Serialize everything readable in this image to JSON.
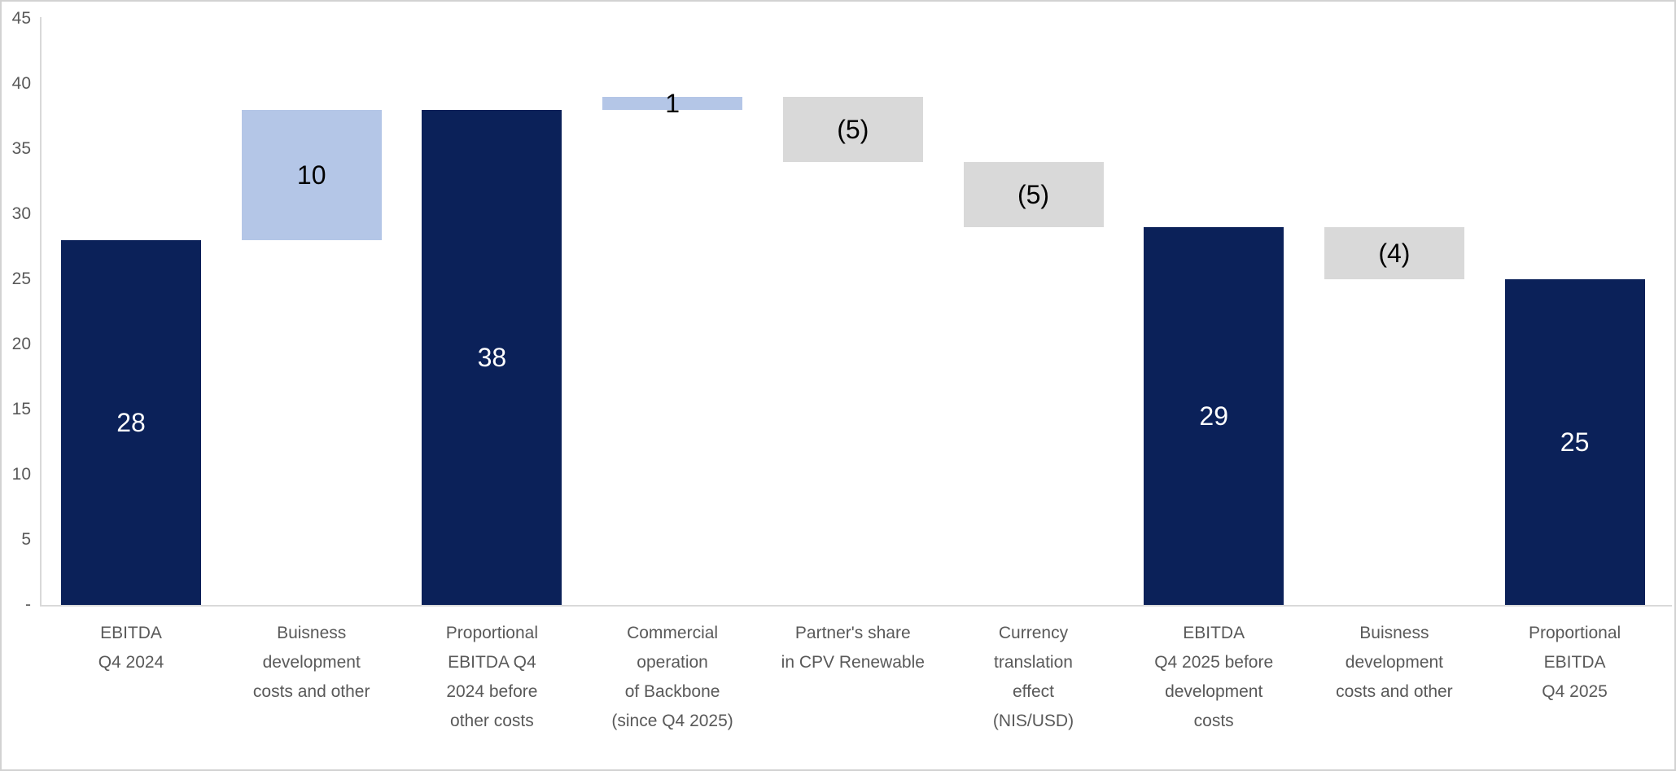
{
  "chart_data": {
    "type": "bar",
    "subtype": "waterfall",
    "title": "",
    "xlabel": "",
    "ylabel": "",
    "ylim": [
      0,
      45
    ],
    "ytick_step": 5,
    "grid": false,
    "legend": false,
    "yticks": [
      {
        "label": "45",
        "value": 45
      },
      {
        "label": "40",
        "value": 40
      },
      {
        "label": "35",
        "value": 35
      },
      {
        "label": "30",
        "value": 30
      },
      {
        "label": "25",
        "value": 25
      },
      {
        "label": "20",
        "value": 20
      },
      {
        "label": "15",
        "value": 15
      },
      {
        "label": "10",
        "value": 10
      },
      {
        "label": "5",
        "value": 5
      },
      {
        "label": "-",
        "value": 0
      }
    ],
    "categories": [
      "EBITDA Q4 2024",
      "Buisness development costs and other",
      "Proportional EBITDA Q4 2024 before other costs",
      "Commercial operation of Backbone (since Q4 2025)",
      "Partner's share in CPV Renewable",
      "Currency translation effect (NIS/USD)",
      "EBITDA Q4 2025 before development costs",
      "Buisness development costs and other",
      "Proportional EBITDA Q4 2025"
    ],
    "bars": [
      {
        "category_lines": [
          "EBITDA",
          "Q4 2024"
        ],
        "value": 28,
        "display": "28",
        "start": 0,
        "end": 28,
        "role": "total",
        "color_key": "navy",
        "label_color_key": "label_on_dark"
      },
      {
        "category_lines": [
          "Buisness",
          "development",
          "costs and other"
        ],
        "value": 10,
        "display": "10",
        "start": 28,
        "end": 38,
        "role": "increase",
        "color_key": "light_blue",
        "label_color_key": "label_on_light"
      },
      {
        "category_lines": [
          "Proportional",
          "EBITDA Q4",
          "2024 before",
          "other costs"
        ],
        "value": 38,
        "display": "38",
        "start": 0,
        "end": 38,
        "role": "total",
        "color_key": "navy",
        "label_color_key": "label_on_dark"
      },
      {
        "category_lines": [
          "Commercial",
          "operation",
          "of Backbone",
          "(since Q4 2025)"
        ],
        "value": 1,
        "display": "1",
        "start": 38,
        "end": 39,
        "role": "increase",
        "color_key": "light_blue",
        "label_color_key": "label_on_light"
      },
      {
        "category_lines": [
          "Partner's share",
          "in CPV Renewable"
        ],
        "value": -5,
        "display": "(5)",
        "start": 39,
        "end": 34,
        "role": "decrease",
        "color_key": "gray",
        "label_color_key": "label_on_light"
      },
      {
        "category_lines": [
          "Currency",
          "translation",
          "effect",
          "(NIS/USD)"
        ],
        "value": -5,
        "display": "(5)",
        "start": 34,
        "end": 29,
        "role": "decrease",
        "color_key": "gray",
        "label_color_key": "label_on_light"
      },
      {
        "category_lines": [
          "EBITDA",
          "Q4 2025 before",
          "development",
          "costs"
        ],
        "value": 29,
        "display": "29",
        "start": 0,
        "end": 29,
        "role": "total",
        "color_key": "navy",
        "label_color_key": "label_on_dark"
      },
      {
        "category_lines": [
          "Buisness",
          "development",
          "costs and other"
        ],
        "value": -4,
        "display": "(4)",
        "start": 29,
        "end": 25,
        "role": "decrease",
        "color_key": "gray",
        "label_color_key": "label_on_light"
      },
      {
        "category_lines": [
          "Proportional",
          "EBITDA",
          "Q4 2025"
        ],
        "value": 25,
        "display": "25",
        "start": 0,
        "end": 25,
        "role": "total",
        "color_key": "navy",
        "label_color_key": "label_on_dark"
      }
    ],
    "colors": {
      "navy": "#0b2159",
      "light_blue": "#b4c6e7",
      "gray": "#d9d9d9",
      "axis_line": "#d9d9d9",
      "axis_text": "#595959",
      "label_on_dark": "#ffffff",
      "label_on_light": "#000000",
      "background": "#ffffff",
      "frame_border": "#d2d2d2"
    }
  }
}
